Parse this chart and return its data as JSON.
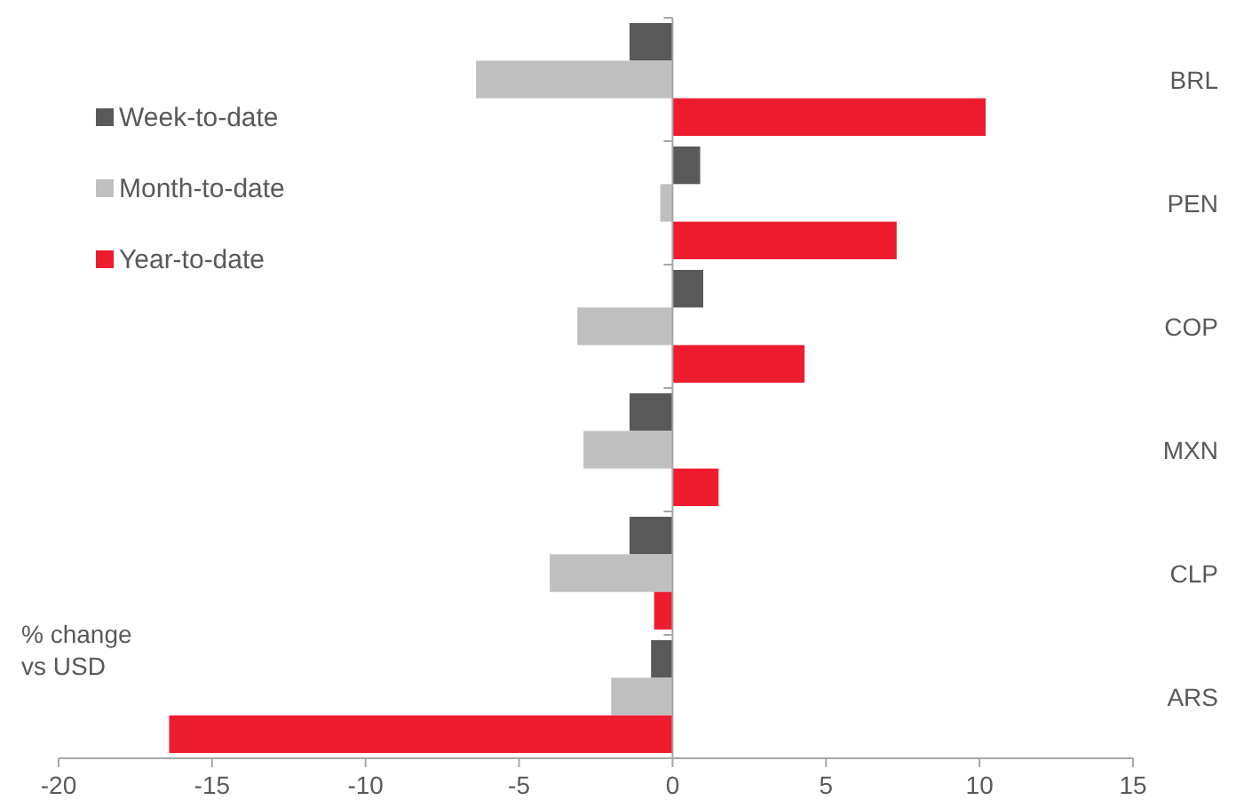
{
  "chart_data": {
    "type": "bar",
    "orientation": "horizontal",
    "xlabel": "% change\nvs USD",
    "categories": [
      "BRL",
      "PEN",
      "COP",
      "MXN",
      "CLP",
      "ARS"
    ],
    "series": [
      {
        "name": "Week-to-date",
        "color": "#595959",
        "values": [
          -1.4,
          0.9,
          1.0,
          -1.4,
          -1.4,
          -0.7
        ]
      },
      {
        "name": "Month-to-date",
        "color": "#bfbfbf",
        "values": [
          -6.4,
          -0.4,
          -3.1,
          -2.9,
          -4.0,
          -2.0
        ]
      },
      {
        "name": "Year-to-date",
        "color": "#ed1c2e",
        "values": [
          10.2,
          7.3,
          4.3,
          1.5,
          -0.6,
          -16.4
        ]
      }
    ],
    "xlim": [
      -20,
      15
    ],
    "xticks": [
      -20,
      -15,
      -10,
      -5,
      0,
      5,
      10,
      15
    ],
    "legend": "top left"
  }
}
